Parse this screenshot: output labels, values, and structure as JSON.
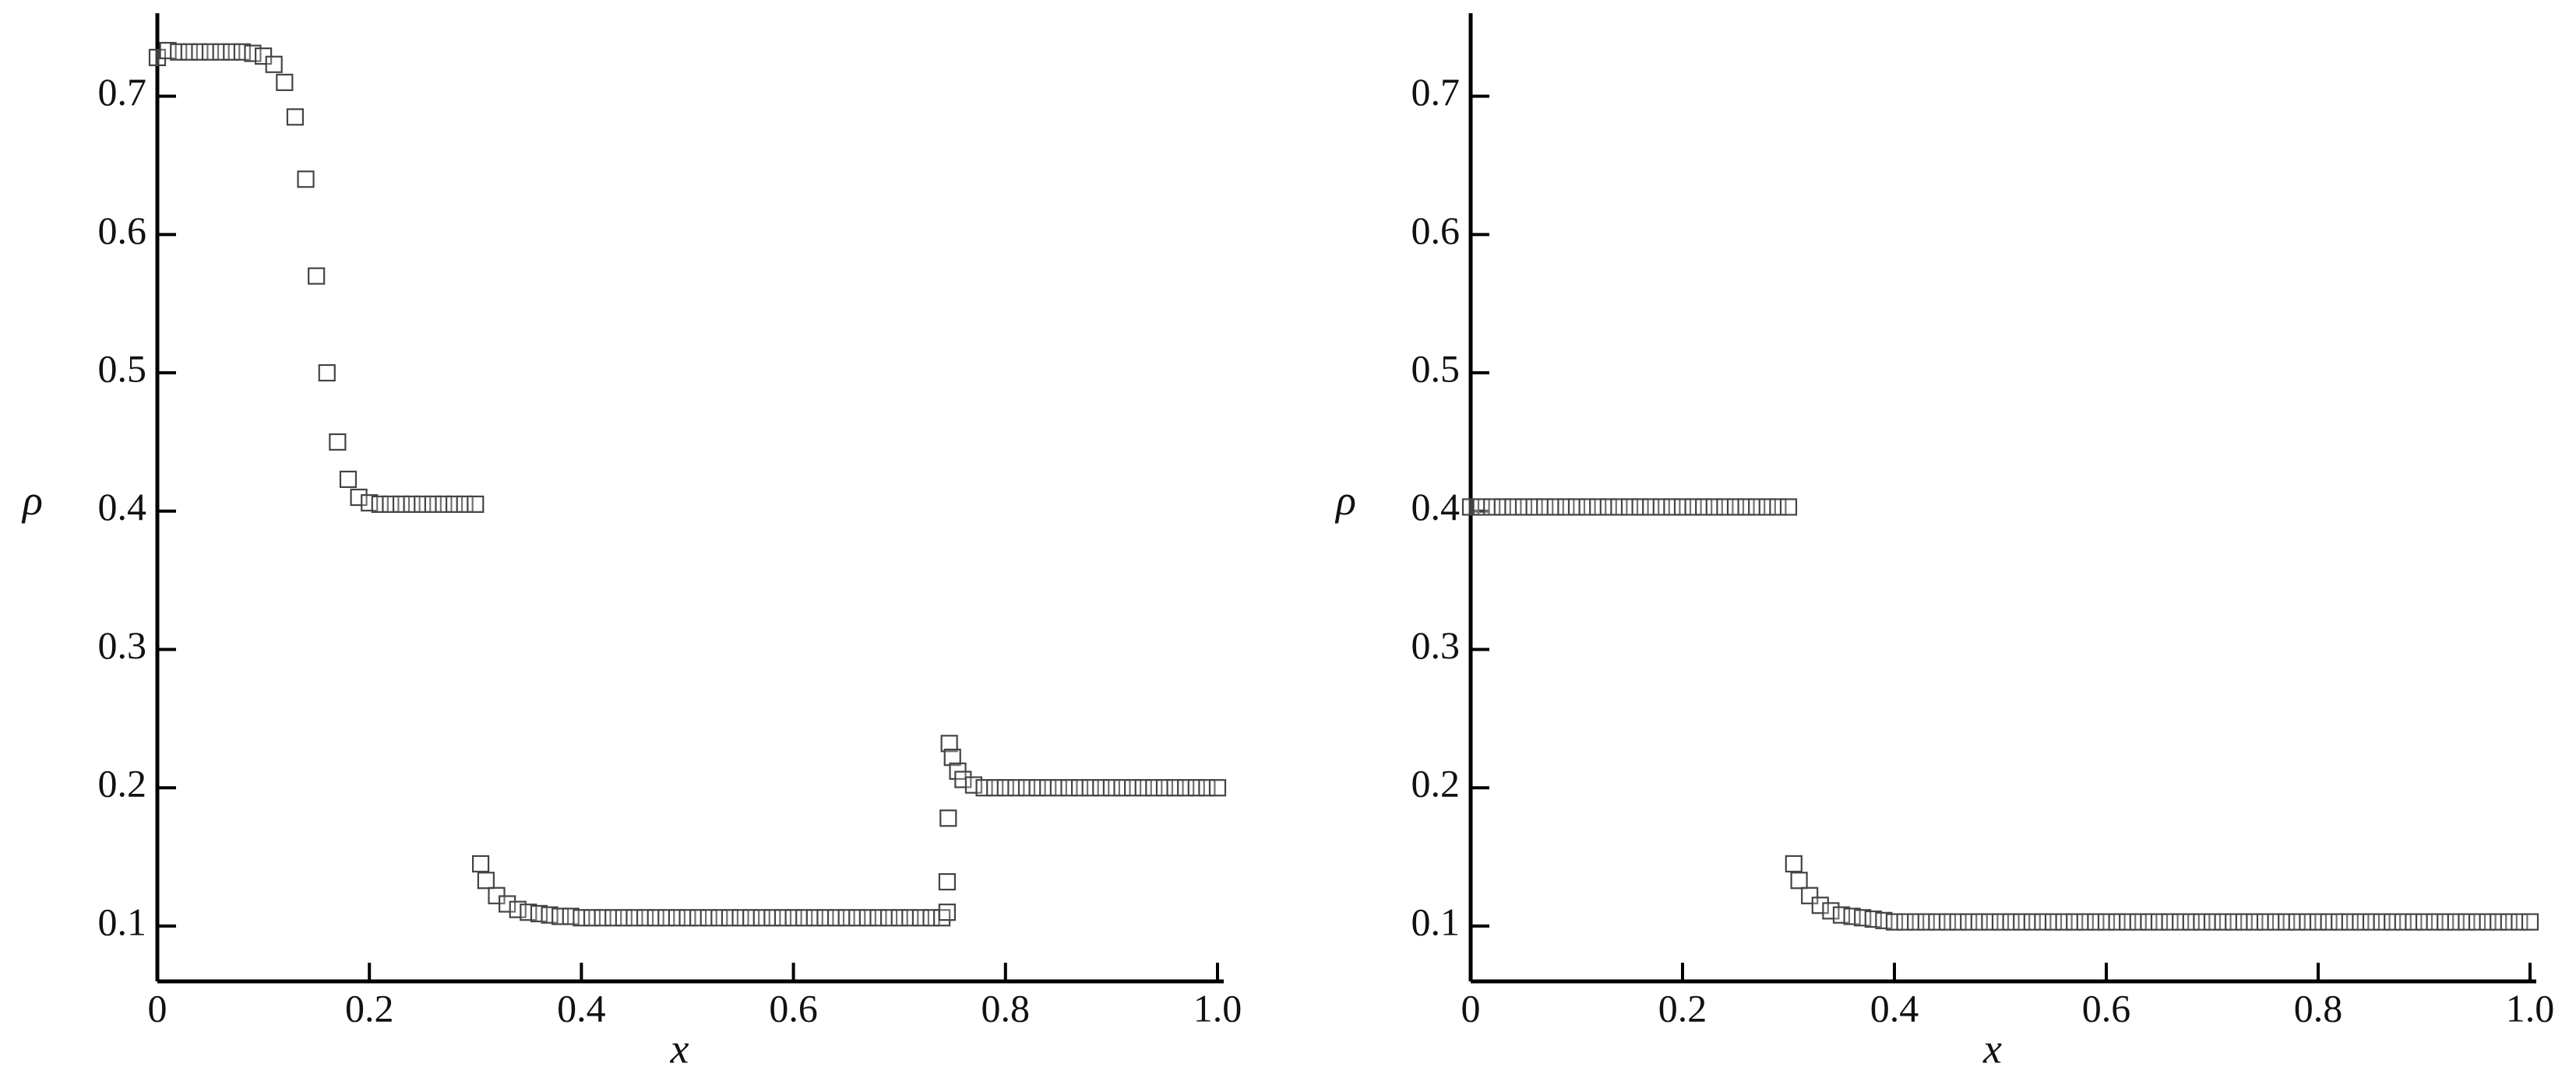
{
  "chart_data": [
    {
      "type": "scatter",
      "x_label": "x",
      "y_label": "ρ",
      "marker": "square",
      "color": "#444444",
      "xlim": [
        0,
        1.0
      ],
      "ylim": [
        0.06,
        0.76
      ],
      "xticks": [
        0,
        0.2,
        0.4,
        0.6,
        0.8,
        {
          "value": 1,
          "label": "1.0"
        }
      ],
      "yticks": [
        0.1,
        0.2,
        0.3,
        0.4,
        0.5,
        0.6,
        0.7
      ],
      "x": [
        0,
        0.01,
        0.02,
        0.03,
        0.04,
        0.05,
        0.06,
        0.07,
        0.08,
        0.09,
        0.1,
        0.11,
        0.12,
        0.13,
        0.14,
        0.15,
        0.16,
        0.17,
        0.18,
        0.19,
        0.2,
        0.21,
        0.22,
        0.23,
        0.24,
        0.25,
        0.26,
        0.27,
        0.28,
        0.29,
        0.3,
        0.305,
        0.31,
        0.32,
        0.33,
        0.34,
        0.35,
        0.36,
        0.37,
        0.38,
        0.39,
        0.4,
        0.41,
        0.42,
        0.43,
        0.44,
        0.45,
        0.46,
        0.47,
        0.48,
        0.49,
        0.5,
        0.51,
        0.52,
        0.53,
        0.54,
        0.55,
        0.56,
        0.57,
        0.58,
        0.59,
        0.6,
        0.61,
        0.62,
        0.63,
        0.64,
        0.65,
        0.66,
        0.67,
        0.68,
        0.69,
        0.7,
        0.71,
        0.72,
        0.73,
        0.74,
        0.745,
        0.745,
        0.746,
        0.747,
        0.75,
        0.755,
        0.76,
        0.77,
        0.78,
        0.79,
        0.8,
        0.81,
        0.82,
        0.83,
        0.84,
        0.85,
        0.86,
        0.87,
        0.88,
        0.89,
        0.9,
        0.91,
        0.92,
        0.93,
        0.94,
        0.95,
        0.96,
        0.97,
        0.98,
        0.99,
        1.0
      ],
      "values": [
        0.728,
        0.733,
        0.732,
        0.732,
        0.732,
        0.732,
        0.732,
        0.732,
        0.732,
        0.731,
        0.729,
        0.723,
        0.71,
        0.685,
        0.64,
        0.57,
        0.5,
        0.45,
        0.423,
        0.41,
        0.406,
        0.405,
        0.405,
        0.405,
        0.405,
        0.405,
        0.405,
        0.405,
        0.405,
        0.405,
        0.405,
        0.145,
        0.133,
        0.122,
        0.116,
        0.112,
        0.11,
        0.109,
        0.108,
        0.107,
        0.107,
        0.106,
        0.106,
        0.106,
        0.106,
        0.106,
        0.106,
        0.106,
        0.106,
        0.106,
        0.106,
        0.106,
        0.106,
        0.106,
        0.106,
        0.106,
        0.106,
        0.106,
        0.106,
        0.106,
        0.106,
        0.106,
        0.106,
        0.106,
        0.106,
        0.106,
        0.106,
        0.106,
        0.106,
        0.106,
        0.106,
        0.106,
        0.106,
        0.106,
        0.106,
        0.106,
        0.11,
        0.132,
        0.178,
        0.232,
        0.222,
        0.212,
        0.206,
        0.202,
        0.2,
        0.2,
        0.2,
        0.2,
        0.2,
        0.2,
        0.2,
        0.2,
        0.2,
        0.2,
        0.2,
        0.2,
        0.2,
        0.2,
        0.2,
        0.2,
        0.2,
        0.2,
        0.2,
        0.2,
        0.2,
        0.2,
        0.2
      ]
    },
    {
      "type": "scatter",
      "x_label": "x",
      "y_label": "ρ",
      "marker": "square",
      "color": "#444444",
      "xlim": [
        0,
        1.0
      ],
      "ylim": [
        0.06,
        0.76
      ],
      "xticks": [
        0,
        0.2,
        0.4,
        0.6,
        0.8,
        {
          "value": 1,
          "label": "1.0"
        }
      ],
      "yticks": [
        0.1,
        0.2,
        0.3,
        0.4,
        0.5,
        0.6,
        0.7
      ],
      "x": [
        0,
        0.01,
        0.02,
        0.03,
        0.04,
        0.05,
        0.06,
        0.07,
        0.08,
        0.09,
        0.1,
        0.11,
        0.12,
        0.13,
        0.14,
        0.15,
        0.16,
        0.17,
        0.18,
        0.19,
        0.2,
        0.21,
        0.22,
        0.23,
        0.24,
        0.25,
        0.26,
        0.27,
        0.28,
        0.29,
        0.3,
        0.305,
        0.31,
        0.32,
        0.33,
        0.34,
        0.35,
        0.36,
        0.37,
        0.38,
        0.39,
        0.4,
        0.41,
        0.42,
        0.43,
        0.44,
        0.45,
        0.46,
        0.47,
        0.48,
        0.49,
        0.5,
        0.51,
        0.52,
        0.53,
        0.54,
        0.55,
        0.56,
        0.57,
        0.58,
        0.59,
        0.6,
        0.61,
        0.62,
        0.63,
        0.64,
        0.65,
        0.66,
        0.67,
        0.68,
        0.69,
        0.7,
        0.71,
        0.72,
        0.73,
        0.74,
        0.75,
        0.76,
        0.77,
        0.78,
        0.79,
        0.8,
        0.81,
        0.82,
        0.83,
        0.84,
        0.85,
        0.86,
        0.87,
        0.88,
        0.89,
        0.9,
        0.91,
        0.92,
        0.93,
        0.94,
        0.95,
        0.96,
        0.97,
        0.98,
        0.99,
        1.0
      ],
      "values": [
        0.403,
        0.403,
        0.403,
        0.403,
        0.403,
        0.403,
        0.403,
        0.403,
        0.403,
        0.403,
        0.403,
        0.403,
        0.403,
        0.403,
        0.403,
        0.403,
        0.403,
        0.403,
        0.403,
        0.403,
        0.403,
        0.403,
        0.403,
        0.403,
        0.403,
        0.403,
        0.403,
        0.403,
        0.403,
        0.403,
        0.403,
        0.145,
        0.133,
        0.122,
        0.115,
        0.111,
        0.108,
        0.107,
        0.106,
        0.105,
        0.104,
        0.103,
        0.103,
        0.103,
        0.103,
        0.103,
        0.103,
        0.103,
        0.103,
        0.103,
        0.103,
        0.103,
        0.103,
        0.103,
        0.103,
        0.103,
        0.103,
        0.103,
        0.103,
        0.103,
        0.103,
        0.103,
        0.103,
        0.103,
        0.103,
        0.103,
        0.103,
        0.103,
        0.103,
        0.103,
        0.103,
        0.103,
        0.103,
        0.103,
        0.103,
        0.103,
        0.103,
        0.103,
        0.103,
        0.103,
        0.103,
        0.103,
        0.103,
        0.103,
        0.103,
        0.103,
        0.103,
        0.103,
        0.103,
        0.103,
        0.103,
        0.103,
        0.103,
        0.103,
        0.103,
        0.103,
        0.103,
        0.103,
        0.103,
        0.103,
        0.103,
        0.103
      ]
    }
  ]
}
